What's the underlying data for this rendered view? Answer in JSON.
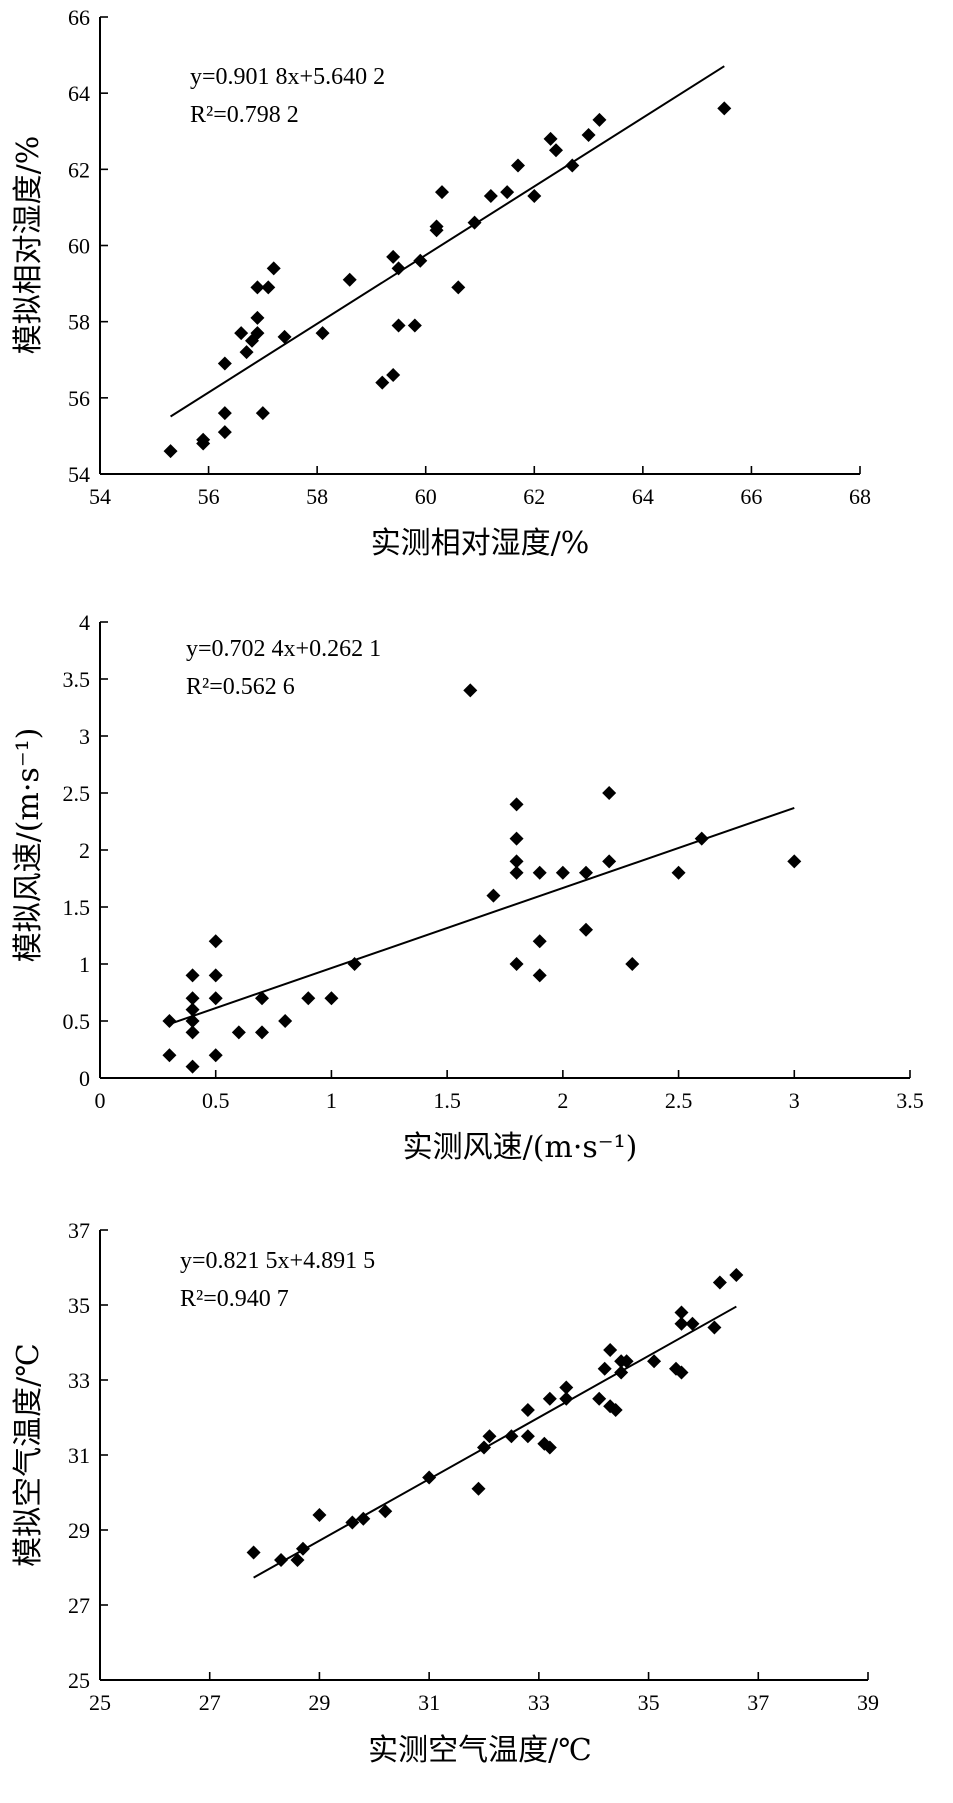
{
  "chart_data": [
    {
      "type": "scatter",
      "xlabel": "实测相对湿度/%",
      "ylabel": "模拟相对湿度/%",
      "xlim": [
        54,
        68
      ],
      "ylim": [
        54,
        66
      ],
      "xticks": [
        "54",
        "56",
        "58",
        "60",
        "62",
        "64",
        "66",
        "68"
      ],
      "yticks": [
        "54",
        "56",
        "58",
        "60",
        "62",
        "64",
        "66"
      ],
      "equation": "y=0.901 8x+5.640 2",
      "r2": "R²=0.798 2",
      "fit": {
        "slope": 0.9018,
        "intercept": 5.6402,
        "x_range": [
          55.3,
          65.5
        ]
      },
      "points": [
        [
          55.3,
          54.6
        ],
        [
          55.9,
          54.8
        ],
        [
          55.9,
          54.9
        ],
        [
          56.3,
          55.1
        ],
        [
          56.3,
          55.6
        ],
        [
          57.0,
          55.6
        ],
        [
          56.3,
          56.9
        ],
        [
          56.6,
          57.7
        ],
        [
          56.7,
          57.2
        ],
        [
          56.8,
          57.5
        ],
        [
          56.9,
          57.7
        ],
        [
          56.9,
          58.1
        ],
        [
          56.9,
          58.9
        ],
        [
          57.1,
          58.9
        ],
        [
          57.2,
          59.4
        ],
        [
          57.4,
          57.6
        ],
        [
          58.1,
          57.7
        ],
        [
          58.6,
          59.1
        ],
        [
          59.2,
          56.4
        ],
        [
          59.4,
          56.6
        ],
        [
          59.4,
          59.7
        ],
        [
          59.5,
          59.4
        ],
        [
          59.5,
          57.9
        ],
        [
          59.8,
          57.9
        ],
        [
          59.9,
          59.6
        ],
        [
          60.2,
          60.4
        ],
        [
          60.2,
          60.5
        ],
        [
          60.3,
          61.4
        ],
        [
          60.6,
          58.9
        ],
        [
          60.9,
          60.6
        ],
        [
          61.2,
          61.3
        ],
        [
          61.5,
          61.4
        ],
        [
          61.7,
          62.1
        ],
        [
          62.0,
          61.3
        ],
        [
          62.3,
          62.8
        ],
        [
          62.4,
          62.5
        ],
        [
          62.7,
          62.1
        ],
        [
          63.0,
          62.9
        ],
        [
          63.2,
          63.3
        ],
        [
          65.5,
          63.6
        ]
      ]
    },
    {
      "type": "scatter",
      "xlabel": "实测风速/(m·s⁻¹)",
      "ylabel": "模拟风速/(m·s⁻¹)",
      "xlim": [
        0,
        3.5
      ],
      "ylim": [
        0,
        4
      ],
      "xticks": [
        "0",
        "0.5",
        "1",
        "1.5",
        "2",
        "2.5",
        "3",
        "3.5"
      ],
      "yticks": [
        "0",
        "0.5",
        "1",
        "1.5",
        "2",
        "2.5",
        "3",
        "3.5",
        "4"
      ],
      "equation": "y=0.702 4x+0.262 1",
      "r2": "R²=0.562 6",
      "fit": {
        "slope": 0.7024,
        "intercept": 0.2621,
        "x_range": [
          0.3,
          3.0
        ]
      },
      "points": [
        [
          0.3,
          0.2
        ],
        [
          0.3,
          0.5
        ],
        [
          0.4,
          0.1
        ],
        [
          0.4,
          0.4
        ],
        [
          0.4,
          0.5
        ],
        [
          0.4,
          0.6
        ],
        [
          0.4,
          0.7
        ],
        [
          0.4,
          0.9
        ],
        [
          0.5,
          0.2
        ],
        [
          0.5,
          0.7
        ],
        [
          0.5,
          0.9
        ],
        [
          0.5,
          1.2
        ],
        [
          0.6,
          0.4
        ],
        [
          0.7,
          0.4
        ],
        [
          0.7,
          0.7
        ],
        [
          0.8,
          0.5
        ],
        [
          0.9,
          0.7
        ],
        [
          1.0,
          0.7
        ],
        [
          1.1,
          1.0
        ],
        [
          1.6,
          3.4
        ],
        [
          1.7,
          1.6
        ],
        [
          1.8,
          1.0
        ],
        [
          1.8,
          1.8
        ],
        [
          1.8,
          1.9
        ],
        [
          1.8,
          2.1
        ],
        [
          1.8,
          2.4
        ],
        [
          1.9,
          0.9
        ],
        [
          1.9,
          1.2
        ],
        [
          1.9,
          1.8
        ],
        [
          2.0,
          1.8
        ],
        [
          2.1,
          1.3
        ],
        [
          2.1,
          1.8
        ],
        [
          2.2,
          1.9
        ],
        [
          2.2,
          2.5
        ],
        [
          2.3,
          1.0
        ],
        [
          2.5,
          1.8
        ],
        [
          2.6,
          2.1
        ],
        [
          3.0,
          1.9
        ]
      ]
    },
    {
      "type": "scatter",
      "xlabel": "实测空气温度/℃",
      "ylabel": "模拟空气温度/℃",
      "xlim": [
        25,
        39
      ],
      "ylim": [
        25,
        37
      ],
      "xticks": [
        "25",
        "27",
        "29",
        "31",
        "33",
        "35",
        "37",
        "39"
      ],
      "yticks": [
        "25",
        "27",
        "29",
        "31",
        "33",
        "35",
        "37"
      ],
      "equation": "y=0.821 5x+4.891 5",
      "r2": "R²=0.940 7",
      "fit": {
        "slope": 0.8215,
        "intercept": 4.8915,
        "x_range": [
          27.8,
          36.6
        ]
      },
      "points": [
        [
          27.8,
          28.4
        ],
        [
          28.3,
          28.2
        ],
        [
          28.6,
          28.2
        ],
        [
          28.7,
          28.5
        ],
        [
          29.0,
          29.4
        ],
        [
          29.6,
          29.2
        ],
        [
          29.8,
          29.3
        ],
        [
          30.2,
          29.5
        ],
        [
          31.0,
          30.4
        ],
        [
          31.9,
          30.1
        ],
        [
          32.0,
          31.2
        ],
        [
          32.1,
          31.5
        ],
        [
          32.5,
          31.5
        ],
        [
          32.8,
          31.5
        ],
        [
          32.8,
          32.2
        ],
        [
          33.1,
          31.3
        ],
        [
          33.2,
          31.2
        ],
        [
          33.2,
          32.5
        ],
        [
          33.5,
          32.5
        ],
        [
          33.5,
          32.8
        ],
        [
          34.1,
          32.5
        ],
        [
          34.2,
          33.3
        ],
        [
          34.3,
          32.3
        ],
        [
          34.3,
          33.8
        ],
        [
          34.4,
          32.2
        ],
        [
          34.5,
          33.2
        ],
        [
          34.5,
          33.5
        ],
        [
          34.6,
          33.5
        ],
        [
          35.1,
          33.5
        ],
        [
          35.5,
          33.3
        ],
        [
          35.6,
          33.2
        ],
        [
          35.6,
          34.5
        ],
        [
          35.6,
          34.8
        ],
        [
          35.8,
          34.5
        ],
        [
          36.2,
          34.4
        ],
        [
          36.3,
          35.6
        ],
        [
          36.6,
          35.8
        ]
      ]
    }
  ]
}
